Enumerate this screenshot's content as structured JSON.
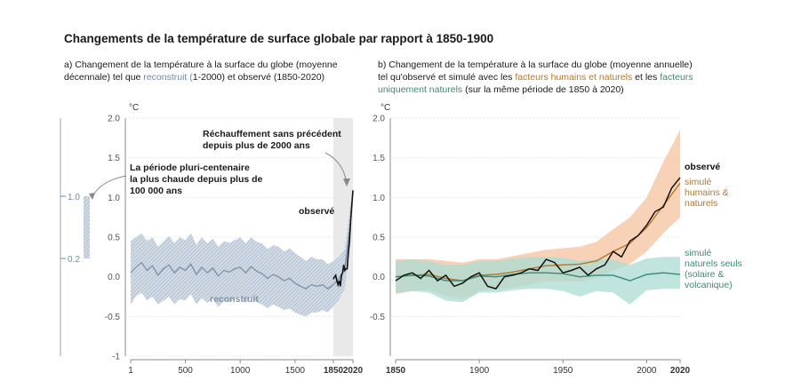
{
  "figure": {
    "title": "Changements de la température de surface globale par rapport à 1850-1900"
  },
  "colors": {
    "observed": "#111111",
    "human_natural": "#b5772a",
    "human_natural_band": "#f5c7a4",
    "natural": "#3a8a7c",
    "natural_band": "#a9dcd3",
    "reconstructed": "#7f94ab",
    "reconstructed_band": "#c5d2df",
    "highlight_band": "#e9e9e9",
    "axis": "#8a8a8a"
  },
  "panel_a": {
    "caption_line1": "a) Changement de la température à la surface du globe (moyenne",
    "caption_line2_pre": "décennale) tel que ",
    "caption_line2_colored": "reconstruit (",
    "caption_line2_post": "1-2000) et observé (1850-2020)",
    "unit": "°C",
    "side_bar_top": "1.0",
    "side_bar_bottom": "0.2",
    "annotation_warm_period": [
      "La période pluri-centenaire",
      "la plus chaude depuis plus de",
      "100 000 ans"
    ],
    "annotation_unprecedented": [
      "Réchauffement sans précédent",
      "depuis plus de 2000 ans"
    ],
    "label_observed": "observé",
    "label_reconstructed": "reconstruit"
  },
  "panel_b": {
    "caption_line1": "b) Changement de la température à la surface du globe (moyenne annuelle)",
    "caption_line2_pre": "tel qu'observé et simulé avec les ",
    "caption_line2_colored": "facteurs humains et naturels",
    "caption_line2_mid": " et les ",
    "caption_line2_colored2": "facteurs",
    "caption_line3_colored": "uniquement naturels",
    "caption_line3_post": " (sur la même période de 1850 à 2020)",
    "unit": "°C",
    "label_observed": "observé",
    "label_human_natural": [
      "simulé",
      "humains &",
      "naturels"
    ],
    "label_natural": [
      "simulé",
      "naturels seuls",
      "(solaire &",
      "volcanique)"
    ]
  },
  "chart_data": [
    {
      "type": "line",
      "title": "Changement de la température à la surface du globe (moyenne décennale)",
      "ylabel": "°C",
      "ylim": [
        -1,
        2
      ],
      "yticks": [
        "-1",
        "-0.5",
        "0.0",
        "0.5",
        "1.0",
        "1.5",
        "2.0"
      ],
      "xticks": [
        "1",
        "500",
        "1000",
        "1500",
        "1850",
        "2020"
      ],
      "highlight_range": [
        1850,
        2020
      ],
      "series": [
        {
          "name": "reconstruit",
          "x": [
            1,
            50,
            100,
            150,
            200,
            250,
            300,
            350,
            400,
            450,
            500,
            550,
            600,
            650,
            700,
            750,
            800,
            850,
            900,
            950,
            1000,
            1050,
            1100,
            1150,
            1200,
            1250,
            1300,
            1350,
            1400,
            1450,
            1500,
            1550,
            1600,
            1650,
            1700,
            1750,
            1800,
            1850,
            1900,
            1950,
            2000
          ],
          "values": [
            0.05,
            0.12,
            0.18,
            0.08,
            0.14,
            0.02,
            0.1,
            0.15,
            0.05,
            0.12,
            0.08,
            0.16,
            0.03,
            0.12,
            0.05,
            0.11,
            0.01,
            0.08,
            0.06,
            0.1,
            0.12,
            0.05,
            0.13,
            0.07,
            0.04,
            -0.02,
            0.03,
            0.0,
            -0.05,
            -0.02,
            -0.08,
            -0.12,
            -0.15,
            -0.1,
            -0.12,
            -0.1,
            -0.15,
            -0.1,
            -0.02,
            0.1,
            0.7
          ],
          "lower": [
            -0.35,
            -0.25,
            -0.2,
            -0.3,
            -0.25,
            -0.35,
            -0.3,
            -0.25,
            -0.35,
            -0.28,
            -0.3,
            -0.22,
            -0.35,
            -0.27,
            -0.33,
            -0.27,
            -0.38,
            -0.3,
            -0.32,
            -0.27,
            -0.25,
            -0.33,
            -0.25,
            -0.32,
            -0.35,
            -0.4,
            -0.35,
            -0.38,
            -0.42,
            -0.4,
            -0.45,
            -0.48,
            -0.5,
            -0.45,
            -0.45,
            -0.42,
            -0.45,
            -0.38,
            -0.28,
            -0.15,
            0.45
          ],
          "upper": [
            0.45,
            0.5,
            0.55,
            0.45,
            0.5,
            0.38,
            0.45,
            0.52,
            0.42,
            0.5,
            0.46,
            0.55,
            0.4,
            0.5,
            0.42,
            0.48,
            0.38,
            0.45,
            0.43,
            0.46,
            0.5,
            0.42,
            0.5,
            0.44,
            0.42,
            0.35,
            0.4,
            0.38,
            0.32,
            0.36,
            0.3,
            0.25,
            0.2,
            0.25,
            0.22,
            0.22,
            0.16,
            0.2,
            0.25,
            0.35,
            0.95
          ]
        },
        {
          "name": "observé",
          "x": [
            1850,
            1860,
            1870,
            1880,
            1890,
            1900,
            1910,
            1920,
            1930,
            1940,
            1950,
            1960,
            1970,
            1980,
            1990,
            2000,
            2010,
            2020
          ],
          "values": [
            -0.03,
            0.0,
            0.02,
            -0.05,
            -0.1,
            -0.05,
            -0.12,
            0.02,
            0.05,
            0.15,
            0.08,
            0.1,
            0.1,
            0.3,
            0.45,
            0.7,
            0.9,
            1.09
          ]
        }
      ],
      "side_range": [
        0.2,
        1.0
      ]
    },
    {
      "type": "line",
      "title": "Changement de la température à la surface du globe (moyenne annuelle)",
      "ylabel": "°C",
      "ylim": [
        -1,
        2
      ],
      "yticks": [
        "-0.5",
        "0.0",
        "0.5",
        "1.0",
        "1.5",
        "2.0"
      ],
      "xticks": [
        "1850",
        "1900",
        "1950",
        "2000",
        "2020"
      ],
      "series": [
        {
          "name": "observé",
          "x": [
            1850,
            1855,
            1860,
            1865,
            1870,
            1875,
            1880,
            1885,
            1890,
            1895,
            1900,
            1905,
            1910,
            1915,
            1920,
            1925,
            1930,
            1935,
            1940,
            1945,
            1950,
            1955,
            1960,
            1965,
            1970,
            1975,
            1980,
            1985,
            1990,
            1995,
            2000,
            2005,
            2010,
            2015,
            2020
          ],
          "values": [
            -0.05,
            0.02,
            0.05,
            -0.02,
            0.08,
            -0.05,
            0.02,
            -0.12,
            -0.08,
            0.0,
            0.05,
            -0.12,
            -0.15,
            0.0,
            0.02,
            0.05,
            0.1,
            0.08,
            0.22,
            0.18,
            0.05,
            0.08,
            0.12,
            0.02,
            0.1,
            0.15,
            0.32,
            0.25,
            0.45,
            0.52,
            0.65,
            0.82,
            0.88,
            1.12,
            1.25
          ]
        },
        {
          "name": "simulé humains & naturels",
          "x": [
            1850,
            1860,
            1870,
            1880,
            1890,
            1900,
            1910,
            1920,
            1930,
            1940,
            1950,
            1960,
            1970,
            1980,
            1990,
            2000,
            2010,
            2020
          ],
          "values": [
            0.0,
            0.02,
            0.03,
            -0.02,
            -0.05,
            0.02,
            0.03,
            0.06,
            0.1,
            0.14,
            0.15,
            0.16,
            0.2,
            0.32,
            0.42,
            0.62,
            0.9,
            1.18
          ],
          "lower": [
            -0.22,
            -0.18,
            -0.16,
            -0.24,
            -0.28,
            -0.18,
            -0.16,
            -0.14,
            -0.1,
            -0.06,
            -0.06,
            -0.06,
            -0.02,
            0.08,
            0.16,
            0.32,
            0.55,
            0.75
          ],
          "upper": [
            0.22,
            0.22,
            0.22,
            0.2,
            0.18,
            0.22,
            0.22,
            0.26,
            0.3,
            0.34,
            0.36,
            0.38,
            0.44,
            0.6,
            0.75,
            1.0,
            1.45,
            1.85
          ]
        },
        {
          "name": "simulé naturels seuls (solaire & volcanique)",
          "x": [
            1850,
            1860,
            1870,
            1880,
            1890,
            1900,
            1910,
            1920,
            1930,
            1940,
            1950,
            1960,
            1970,
            1980,
            1990,
            2000,
            2010,
            2020
          ],
          "values": [
            0.0,
            0.02,
            0.01,
            -0.05,
            -0.05,
            0.01,
            0.0,
            0.03,
            0.05,
            0.05,
            0.04,
            0.0,
            0.02,
            0.02,
            -0.05,
            0.03,
            0.05,
            0.03
          ],
          "lower": [
            -0.2,
            -0.18,
            -0.2,
            -0.3,
            -0.32,
            -0.2,
            -0.2,
            -0.17,
            -0.15,
            -0.15,
            -0.18,
            -0.25,
            -0.18,
            -0.2,
            -0.35,
            -0.17,
            -0.15,
            -0.15
          ],
          "upper": [
            0.2,
            0.22,
            0.2,
            0.15,
            0.15,
            0.2,
            0.2,
            0.23,
            0.25,
            0.25,
            0.24,
            0.2,
            0.22,
            0.22,
            0.15,
            0.23,
            0.25,
            0.25
          ]
        }
      ]
    }
  ]
}
